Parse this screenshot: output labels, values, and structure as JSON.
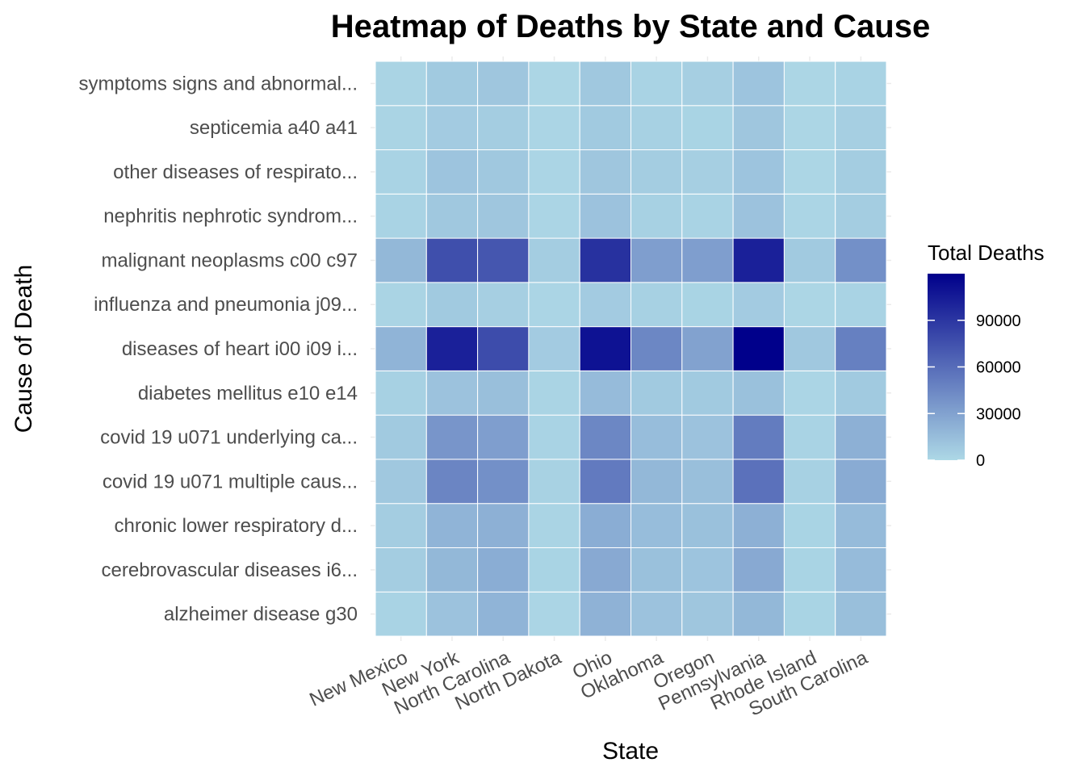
{
  "chart_data": {
    "type": "heatmap",
    "title": "Heatmap of Deaths by State and Cause",
    "xlabel": "State",
    "ylabel": "Cause of Death",
    "x_categories": [
      "New Mexico",
      "New York",
      "North Carolina",
      "North Dakota",
      "Ohio",
      "Oklahoma",
      "Oregon",
      "Pennsylvania",
      "Rhode Island",
      "South Carolina"
    ],
    "y_categories": [
      "alzheimer disease g30",
      "cerebrovascular diseases i6...",
      "chronic lower respiratory d...",
      "covid 19 u071 multiple caus...",
      "covid 19 u071 underlying ca...",
      "diabetes mellitus e10 e14",
      "diseases of heart i00 i09 i...",
      "influenza and pneumonia j09...",
      "malignant neoplasms c00 c97",
      "nephritis nephrotic syndrom...",
      "other diseases of respirato...",
      "septicemia a40 a41",
      "symptoms signs and abnormal..."
    ],
    "values": [
      [
        3000,
        12000,
        20000,
        1500,
        21000,
        12000,
        10000,
        18000,
        2500,
        14000
      ],
      [
        6000,
        18000,
        24000,
        2500,
        26000,
        13000,
        11000,
        26000,
        2500,
        16000
      ],
      [
        6000,
        20000,
        22000,
        2000,
        24000,
        15000,
        13000,
        22000,
        2500,
        16000
      ],
      [
        9000,
        46000,
        40000,
        3500,
        52000,
        18000,
        14000,
        57000,
        4000,
        25000
      ],
      [
        8000,
        37000,
        32000,
        3000,
        45000,
        15000,
        12000,
        51000,
        3000,
        22000
      ],
      [
        4000,
        12000,
        14000,
        2000,
        16000,
        8000,
        8000,
        13000,
        1500,
        8000
      ],
      [
        20000,
        102000,
        78000,
        7000,
        110000,
        45000,
        30000,
        120000,
        9000,
        49000
      ],
      [
        2000,
        8000,
        5000,
        1500,
        7000,
        4000,
        2500,
        7000,
        1000,
        3000
      ],
      [
        18000,
        76000,
        72000,
        6000,
        93000,
        32000,
        32000,
        102000,
        8000,
        40000
      ],
      [
        3000,
        9000,
        10000,
        1500,
        12000,
        4000,
        3000,
        12000,
        1500,
        6000
      ],
      [
        3000,
        11000,
        9000,
        1500,
        10000,
        6000,
        5000,
        11000,
        1000,
        6000
      ],
      [
        2000,
        7000,
        6000,
        1500,
        8000,
        4000,
        2500,
        10000,
        1000,
        5000
      ],
      [
        2000,
        8000,
        10000,
        1000,
        9000,
        3000,
        5000,
        11000,
        1000,
        3000
      ]
    ],
    "legend": {
      "title": "Total Deaths",
      "ticks": [
        0,
        30000,
        60000,
        90000
      ],
      "min": 0,
      "max": 120000,
      "low_color": "#add8e6",
      "high_color": "#00008b",
      "placement": "right"
    },
    "grid": true
  }
}
